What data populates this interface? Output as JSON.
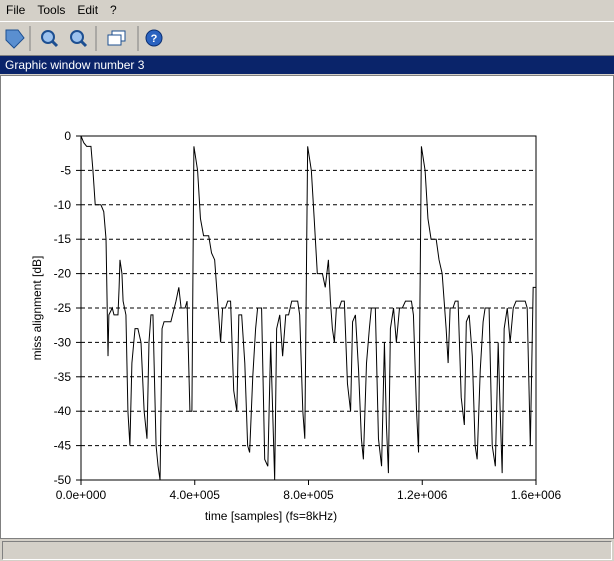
{
  "menu": [
    "File",
    "Tools",
    "Edit",
    "?"
  ],
  "window_title": "Graphic window number 3",
  "chart_data": {
    "type": "line",
    "xlabel": "time [samples] (fs=8kHz)",
    "ylabel": "miss alignment [dB]",
    "color": "#000000",
    "grid": true,
    "xlim": [
      0,
      1600000
    ],
    "ylim": [
      -50,
      0
    ],
    "xticks": [
      {
        "value": 0,
        "label": "0.0e+000"
      },
      {
        "value": 400000,
        "label": "4.0e+005"
      },
      {
        "value": 800000,
        "label": "8.0e+005"
      },
      {
        "value": 1200000,
        "label": "1.2e+006"
      },
      {
        "value": 1600000,
        "label": "1.6e+006"
      }
    ],
    "yticks": [
      0,
      -5,
      -10,
      -15,
      -20,
      -25,
      -30,
      -35,
      -40,
      -45,
      -50
    ],
    "x": [
      0,
      10000,
      20000,
      35000,
      42000,
      50000,
      70000,
      80000,
      88000,
      95000,
      98000,
      110000,
      116000,
      130000,
      134000,
      137000,
      144000,
      148000,
      158000,
      165000,
      172000,
      179000,
      190000,
      200000,
      211000,
      222000,
      232000,
      239000,
      246000,
      253000,
      264000,
      271000,
      278000,
      285000,
      292000,
      316000,
      334000,
      344000,
      352000,
      366000,
      373000,
      383000,
      390000,
      397000,
      410000,
      420000,
      431000,
      449000,
      459000,
      470000,
      477000,
      484000,
      491000,
      498000,
      508000,
      516000,
      526000,
      537000,
      548000,
      555000,
      565000,
      576000,
      586000,
      593000,
      604000,
      614000,
      621000,
      635000,
      646000,
      657000,
      667000,
      674000,
      681000,
      688000,
      699000,
      709000,
      720000,
      730000,
      741000,
      762000,
      769000,
      780000,
      787000,
      797000,
      810000,
      820000,
      831000,
      849000,
      859000,
      870000,
      877000,
      884000,
      891000,
      898000,
      908000,
      916000,
      926000,
      937000,
      948000,
      955000,
      965000,
      976000,
      986000,
      993000,
      1004000,
      1014000,
      1021000,
      1035000,
      1046000,
      1057000,
      1067000,
      1074000,
      1081000,
      1088000,
      1099000,
      1109000,
      1120000,
      1130000,
      1141000,
      1162000,
      1169000,
      1180000,
      1187000,
      1197000,
      1210000,
      1220000,
      1231000,
      1249000,
      1259000,
      1270000,
      1277000,
      1284000,
      1291000,
      1298000,
      1308000,
      1316000,
      1326000,
      1337000,
      1348000,
      1355000,
      1365000,
      1376000,
      1386000,
      1393000,
      1404000,
      1414000,
      1421000,
      1435000,
      1446000,
      1457000,
      1467000,
      1474000,
      1481000,
      1488000,
      1499000,
      1509000,
      1520000,
      1530000,
      1541000,
      1562000,
      1569000,
      1580000,
      1590000,
      1600000
    ],
    "values": [
      0,
      -1,
      -1.5,
      -1.5,
      -5,
      -10,
      -10,
      -11,
      -15,
      -32,
      -26,
      -25,
      -26,
      -26,
      -22,
      -18,
      -20,
      -24,
      -26,
      -40,
      -45,
      -33,
      -28,
      -28,
      -30,
      -40,
      -44,
      -30,
      -26,
      -26,
      -45,
      -48,
      -50,
      -28,
      -27,
      -27,
      -24,
      -22,
      -25,
      -25,
      -24,
      -40,
      -40,
      -1.5,
      -5,
      -12,
      -14.5,
      -14.5,
      -17,
      -18,
      -22,
      -26,
      -30,
      -25,
      -25,
      -24,
      -24,
      -37,
      -40,
      -26,
      -26,
      -33,
      -45,
      -46,
      -35,
      -28,
      -25,
      -25,
      -47,
      -48,
      -30,
      -40,
      -50,
      -28,
      -26,
      -32,
      -26,
      -26,
      -24,
      -24,
      -26,
      -40,
      -44,
      -1.5,
      -5,
      -12,
      -20,
      -20,
      -22,
      -18,
      -24,
      -28,
      -30,
      -25,
      -25,
      -24,
      -24,
      -36,
      -40,
      -27,
      -26,
      -34,
      -44,
      -47,
      -33,
      -28,
      -25,
      -25,
      -44,
      -48,
      -30,
      -42,
      -49,
      -28,
      -25,
      -30,
      -25,
      -25,
      -24,
      -24,
      -26,
      -40,
      -46,
      -1.5,
      -5,
      -12,
      -15,
      -15,
      -18,
      -20,
      -24,
      -28,
      -33,
      -25,
      -25,
      -24,
      -24,
      -38,
      -42,
      -27,
      -26,
      -32,
      -45,
      -47,
      -34,
      -27,
      -25,
      -25,
      -45,
      -48,
      -30,
      -40,
      -49,
      -28,
      -25,
      -30,
      -25,
      -24,
      -24,
      -24,
      -25,
      -45,
      -22,
      -22
    ]
  }
}
